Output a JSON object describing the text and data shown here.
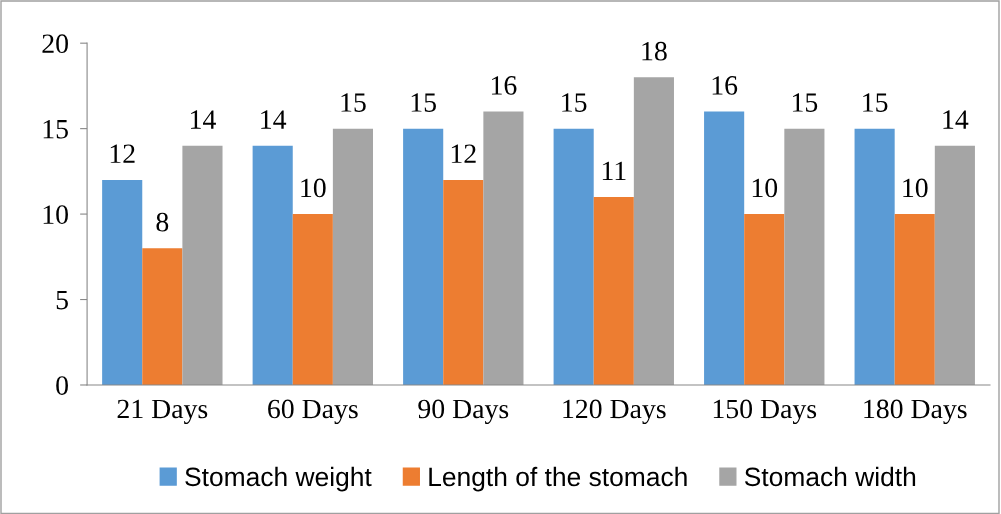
{
  "chart_data": {
    "type": "bar",
    "categories": [
      "21 Days",
      "60 Days",
      "90 Days",
      "120 Days",
      "150 Days",
      "180 Days"
    ],
    "series": [
      {
        "name": "Stomach weight",
        "color": "#5b9bd5",
        "values": [
          12,
          14,
          15,
          15,
          16,
          15
        ]
      },
      {
        "name": "Length of the stomach",
        "color": "#ed7d31",
        "values": [
          8,
          10,
          12,
          11,
          10,
          10
        ]
      },
      {
        "name": "Stomach width",
        "color": "#a5a5a5",
        "values": [
          14,
          15,
          16,
          18,
          15,
          14
        ]
      }
    ],
    "ylim": [
      0,
      20
    ],
    "yticks": [
      0,
      5,
      10,
      15,
      20
    ],
    "grid": false,
    "legend": "bottom",
    "data_labels": true
  }
}
